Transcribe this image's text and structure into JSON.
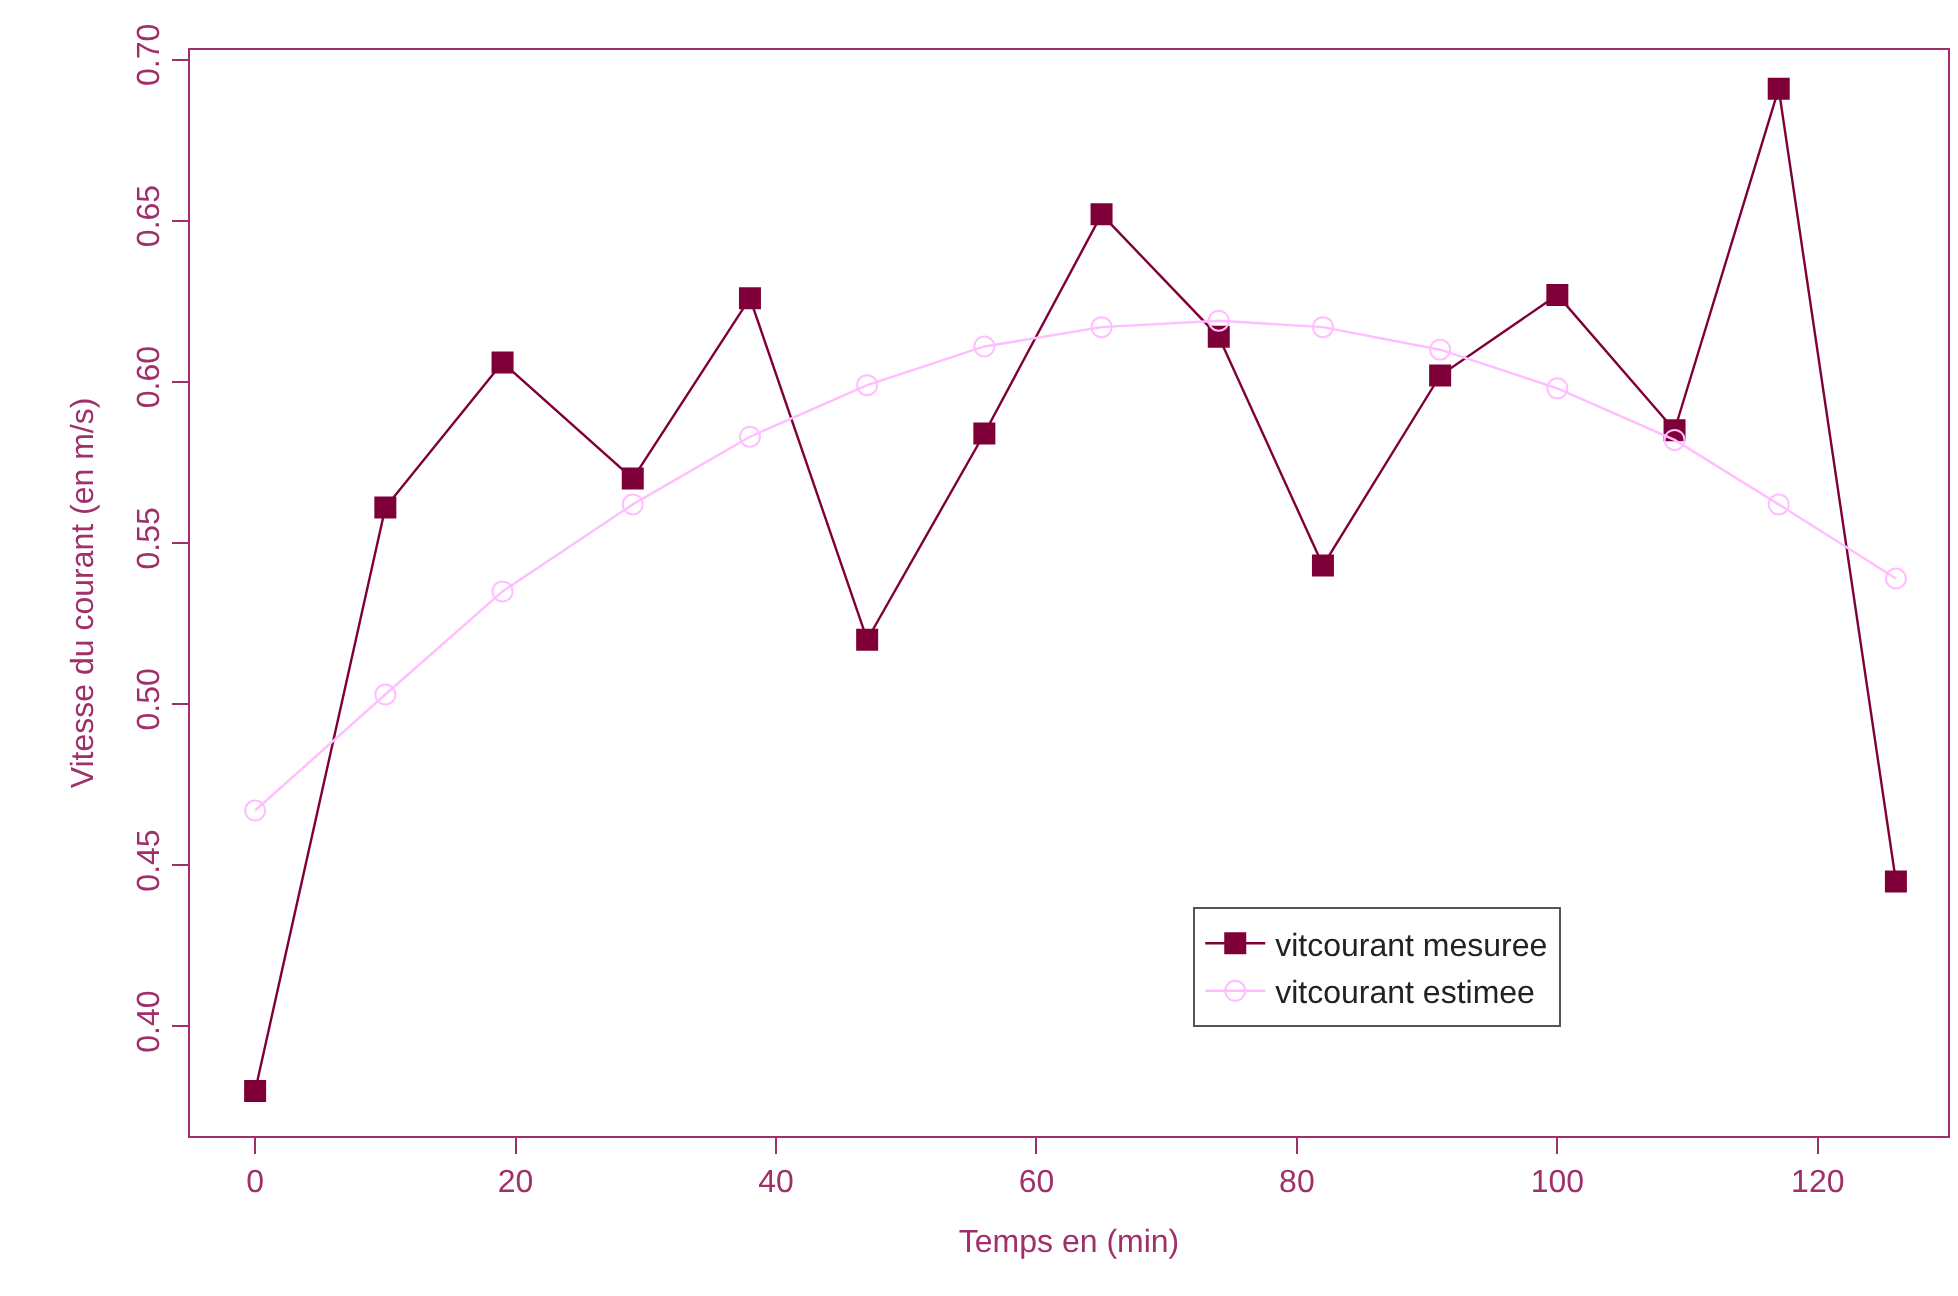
{
  "chart_data": {
    "type": "line",
    "xlabel": "Temps en (min)",
    "ylabel": "Vitesse du courant (en m/s)",
    "x": [
      0,
      10,
      19,
      29,
      38,
      47,
      56,
      65,
      74,
      82,
      91,
      100,
      109,
      117,
      126
    ],
    "series": [
      {
        "name": "vitcourant mesuree",
        "color": "#7f0038",
        "marker": "square",
        "values": [
          0.38,
          0.561,
          0.606,
          0.57,
          0.626,
          0.52,
          0.584,
          0.652,
          0.614,
          0.543,
          0.602,
          0.627,
          0.585,
          0.691,
          0.445
        ]
      },
      {
        "name": "vitcourant estimee",
        "color": "#ffbfff",
        "marker": "circle",
        "values": [
          0.467,
          0.503,
          0.535,
          0.562,
          0.583,
          0.599,
          0.611,
          0.617,
          0.619,
          0.617,
          0.61,
          0.598,
          0.582,
          0.562,
          0.539
        ]
      }
    ],
    "xlim": [
      -5,
      130
    ],
    "xticks": [
      0,
      20,
      40,
      60,
      80,
      100,
      120
    ],
    "ylim": [
      0.366,
      0.703
    ],
    "yticks": [
      {
        "value": 0.4,
        "label": "0.40"
      },
      {
        "value": 0.45,
        "label": "0.45"
      },
      {
        "value": 0.5,
        "label": "0.50"
      },
      {
        "value": 0.55,
        "label": "0.55"
      },
      {
        "value": 0.6,
        "label": "0.60"
      },
      {
        "value": 0.65,
        "label": "0.65"
      },
      {
        "value": 0.7,
        "label": "0.70"
      }
    ],
    "grid": false,
    "legend": "bottom right",
    "line_style": "solid"
  }
}
